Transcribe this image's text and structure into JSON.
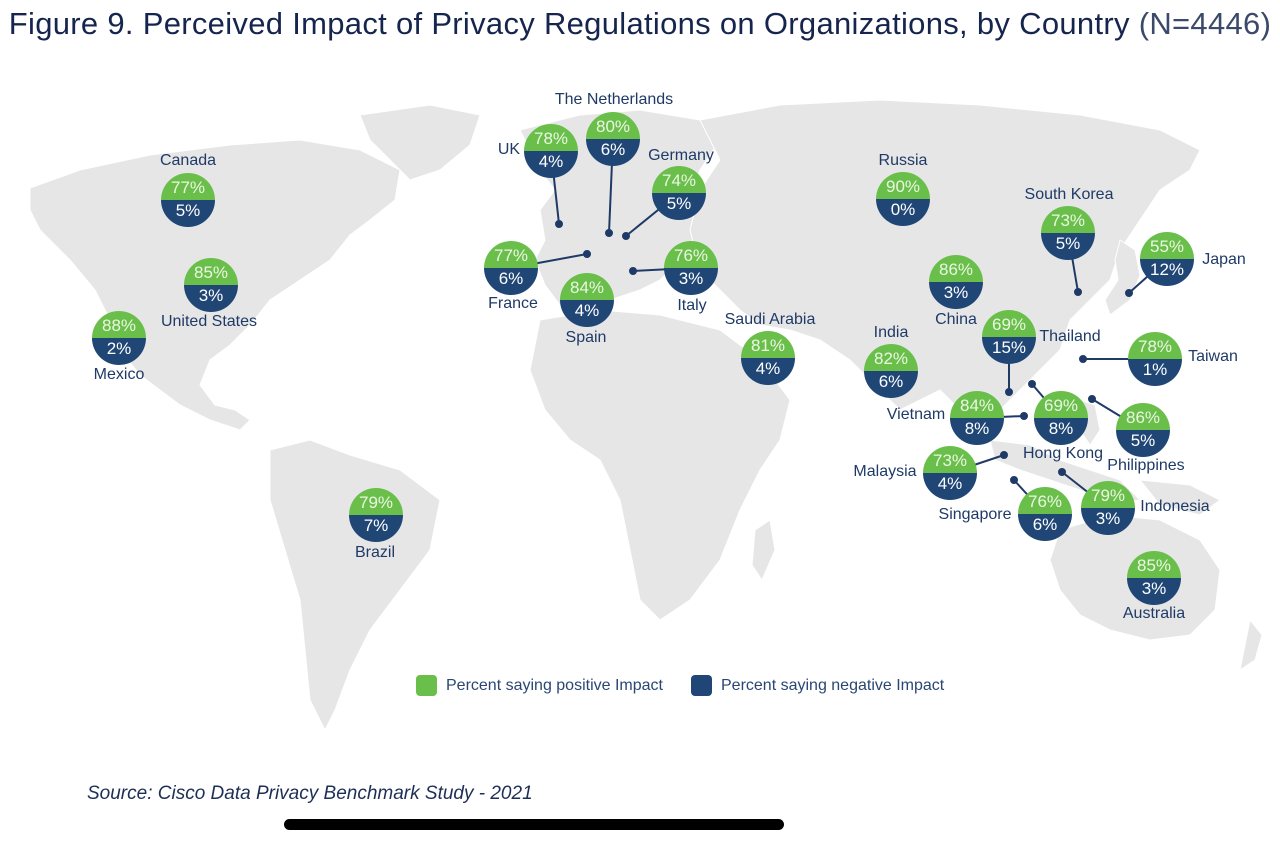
{
  "title": {
    "main": "Figure 9. Perceived Impact of Privacy Regulations on Organizations, by Country",
    "n": "(N=4446)"
  },
  "colors": {
    "positive": "#6abf4b",
    "negative": "#1f4675",
    "land": "#e6e6e6",
    "leader": "#1f3a66"
  },
  "legend": {
    "positive_label": "Percent saying positive Impact",
    "negative_label": "Percent saying negative Impact"
  },
  "source": "Source: Cisco Data Privacy Benchmark Study - 2021",
  "chart_data": {
    "type": "map",
    "title": "Figure 9. Perceived Impact of Privacy Regulations on Organizations, by Country (N=4446)",
    "legend": [
      "Percent saying positive Impact",
      "Percent saying negative Impact"
    ],
    "countries": [
      {
        "name": "Canada",
        "positive": "77%",
        "negative": "5%"
      },
      {
        "name": "United States",
        "positive": "85%",
        "negative": "3%"
      },
      {
        "name": "Mexico",
        "positive": "88%",
        "negative": "2%"
      },
      {
        "name": "Brazil",
        "positive": "79%",
        "negative": "7%"
      },
      {
        "name": "UK",
        "positive": "78%",
        "negative": "4%"
      },
      {
        "name": "The Netherlands",
        "positive": "80%",
        "negative": "6%"
      },
      {
        "name": "Germany",
        "positive": "74%",
        "negative": "5%"
      },
      {
        "name": "France",
        "positive": "77%",
        "negative": "6%"
      },
      {
        "name": "Spain",
        "positive": "84%",
        "negative": "4%"
      },
      {
        "name": "Italy",
        "positive": "76%",
        "negative": "3%"
      },
      {
        "name": "Saudi Arabia",
        "positive": "81%",
        "negative": "4%"
      },
      {
        "name": "Russia",
        "positive": "90%",
        "negative": "0%"
      },
      {
        "name": "India",
        "positive": "82%",
        "negative": "6%"
      },
      {
        "name": "China",
        "positive": "86%",
        "negative": "3%"
      },
      {
        "name": "Thailand",
        "positive": "69%",
        "negative": "15%"
      },
      {
        "name": "South Korea",
        "positive": "73%",
        "negative": "5%"
      },
      {
        "name": "Japan",
        "positive": "55%",
        "negative": "12%"
      },
      {
        "name": "Taiwan",
        "positive": "78%",
        "negative": "1%"
      },
      {
        "name": "Vietnam",
        "positive": "84%",
        "negative": "8%"
      },
      {
        "name": "Hong Kong",
        "positive": "69%",
        "negative": "8%"
      },
      {
        "name": "Philippines",
        "positive": "86%",
        "negative": "5%"
      },
      {
        "name": "Malaysia",
        "positive": "73%",
        "negative": "4%"
      },
      {
        "name": "Singapore",
        "positive": "76%",
        "negative": "6%"
      },
      {
        "name": "Indonesia",
        "positive": "79%",
        "negative": "3%"
      },
      {
        "name": "Australia",
        "positive": "85%",
        "negative": "3%"
      }
    ]
  }
}
